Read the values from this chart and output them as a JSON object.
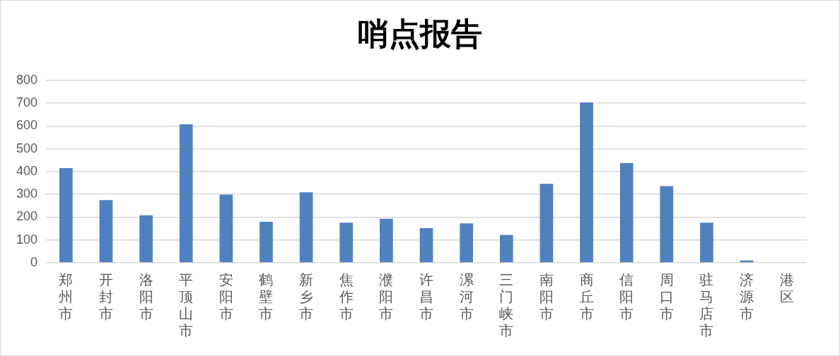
{
  "chart_data": {
    "type": "bar",
    "title": "哨点报告",
    "categories": [
      "郑州市",
      "开封市",
      "洛阳市",
      "平顶山市",
      "安阳市",
      "鹤壁市",
      "新乡市",
      "焦作市",
      "濮阳市",
      "许昌市",
      "漯河市",
      "三门峡市",
      "南阳市",
      "商丘市",
      "信阳市",
      "周口市",
      "驻马店市",
      "济源市",
      "港区"
    ],
    "values": [
      415,
      275,
      208,
      607,
      299,
      180,
      309,
      176,
      193,
      152,
      173,
      122,
      346,
      703,
      438,
      336,
      176,
      10,
      0
    ],
    "color": "#4f81bd",
    "ylim": [
      0,
      800
    ],
    "yticks": [
      0,
      100,
      200,
      300,
      400,
      500,
      600,
      700,
      800
    ],
    "grid": "y",
    "legend": false
  }
}
